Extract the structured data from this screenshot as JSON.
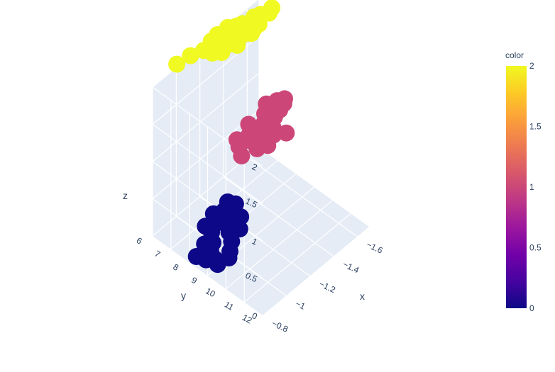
{
  "chart_data": {
    "type": "scatter3d",
    "axes": {
      "x": {
        "title": "x",
        "ticks": [
          "−1.6",
          "−1.4",
          "−1.2",
          "−1",
          "−0.8"
        ]
      },
      "y": {
        "title": "y",
        "ticks": [
          "6",
          "7",
          "8",
          "9",
          "10",
          "11",
          "12"
        ]
      },
      "z": {
        "title": "z",
        "ticks": [
          "0",
          "0.5",
          "1",
          "1.5",
          "2"
        ]
      }
    },
    "colorbar": {
      "title": "color",
      "ticks": [
        "0",
        "0.5",
        "1",
        "1.5",
        "2"
      ],
      "range": [
        0,
        2
      ],
      "colorscale": [
        "#0d0887",
        "#46039f",
        "#7201a8",
        "#9c179e",
        "#bd3786",
        "#d8576b",
        "#ed7953",
        "#fb9f3a",
        "#fdca26",
        "#f0f921"
      ]
    },
    "series": [
      {
        "color_value": 0,
        "marker_color": "#0d0887",
        "points": [
          {
            "x": -1.22,
            "y": 7.2,
            "z": 0
          },
          {
            "x": -1.2,
            "y": 7.5,
            "z": 0
          },
          {
            "x": -1.15,
            "y": 7.8,
            "z": 0
          },
          {
            "x": -1.1,
            "y": 7.4,
            "z": 0
          },
          {
            "x": -1.25,
            "y": 7.9,
            "z": 0
          },
          {
            "x": -1.12,
            "y": 8.1,
            "z": 0
          },
          {
            "x": -1.05,
            "y": 7.6,
            "z": 0
          },
          {
            "x": -1.18,
            "y": 8.3,
            "z": 0
          },
          {
            "x": -1.0,
            "y": 8.0,
            "z": 0
          },
          {
            "x": -1.08,
            "y": 8.5,
            "z": 0
          },
          {
            "x": -0.95,
            "y": 8.2,
            "z": 0
          },
          {
            "x": -1.02,
            "y": 8.8,
            "z": 0
          },
          {
            "x": -0.92,
            "y": 8.6,
            "z": 0
          },
          {
            "x": -0.98,
            "y": 9.0,
            "z": 0
          },
          {
            "x": -0.9,
            "y": 8.9,
            "z": 0
          },
          {
            "x": -1.28,
            "y": 7.0,
            "z": 0
          },
          {
            "x": -1.3,
            "y": 7.3,
            "z": 0
          },
          {
            "x": -1.16,
            "y": 7.0,
            "z": 0
          },
          {
            "x": -1.06,
            "y": 7.2,
            "z": 0
          },
          {
            "x": -0.96,
            "y": 7.8,
            "z": 0
          },
          {
            "x": -0.88,
            "y": 8.4,
            "z": 0
          },
          {
            "x": -0.86,
            "y": 8.0,
            "z": 0
          }
        ]
      },
      {
        "color_value": 1,
        "marker_color": "#cc4778",
        "points": [
          {
            "x": -1.5,
            "y": 7.6,
            "z": 1
          },
          {
            "x": -1.45,
            "y": 7.9,
            "z": 1
          },
          {
            "x": -1.4,
            "y": 8.1,
            "z": 1
          },
          {
            "x": -1.38,
            "y": 7.5,
            "z": 1
          },
          {
            "x": -1.35,
            "y": 8.4,
            "z": 1
          },
          {
            "x": -1.32,
            "y": 7.9,
            "z": 1
          },
          {
            "x": -1.3,
            "y": 8.2,
            "z": 1
          },
          {
            "x": -1.28,
            "y": 8.6,
            "z": 1
          },
          {
            "x": -1.25,
            "y": 7.7,
            "z": 1
          },
          {
            "x": -1.42,
            "y": 8.6,
            "z": 1
          },
          {
            "x": -1.46,
            "y": 8.3,
            "z": 1
          },
          {
            "x": -1.22,
            "y": 8.0,
            "z": 1
          },
          {
            "x": -1.52,
            "y": 8.0,
            "z": 1
          },
          {
            "x": -1.18,
            "y": 8.4,
            "z": 1
          },
          {
            "x": -1.6,
            "y": 7.6,
            "z": 1
          },
          {
            "x": -1.58,
            "y": 7.9,
            "z": 1
          },
          {
            "x": -1.63,
            "y": 7.8,
            "z": 1
          },
          {
            "x": -1.66,
            "y": 7.65,
            "z": 1
          },
          {
            "x": -1.56,
            "y": 7.3,
            "z": 1
          },
          {
            "x": -1.62,
            "y": 7.5,
            "z": 1
          },
          {
            "x": -1.48,
            "y": 8.9,
            "z": 1
          },
          {
            "x": -1.34,
            "y": 8.8,
            "z": 1
          }
        ]
      },
      {
        "color_value": 2,
        "marker_color": "#f0f921",
        "points": [
          {
            "x": -1.42,
            "y": 6.1,
            "z": 2
          },
          {
            "x": -1.36,
            "y": 6.2,
            "z": 2
          },
          {
            "x": -1.34,
            "y": 6.05,
            "z": 2
          },
          {
            "x": -1.3,
            "y": 6.3,
            "z": 2
          },
          {
            "x": -1.4,
            "y": 6.4,
            "z": 2
          },
          {
            "x": -1.28,
            "y": 6.1,
            "z": 2
          },
          {
            "x": -1.38,
            "y": 6.6,
            "z": 2
          },
          {
            "x": -1.25,
            "y": 6.4,
            "z": 2
          },
          {
            "x": -1.32,
            "y": 6.7,
            "z": 2
          },
          {
            "x": -1.2,
            "y": 6.2,
            "z": 2
          },
          {
            "x": -1.46,
            "y": 6.3,
            "z": 2
          },
          {
            "x": -1.26,
            "y": 6.8,
            "z": 2
          },
          {
            "x": -1.44,
            "y": 6.8,
            "z": 2
          },
          {
            "x": -1.5,
            "y": 6.4,
            "z": 2
          },
          {
            "x": -1.48,
            "y": 7.0,
            "z": 2
          },
          {
            "x": -1.52,
            "y": 6.9,
            "z": 2
          },
          {
            "x": -1.58,
            "y": 6.5,
            "z": 2
          },
          {
            "x": -1.56,
            "y": 6.9,
            "z": 2
          },
          {
            "x": -1.62,
            "y": 6.6,
            "z": 2
          },
          {
            "x": -1.66,
            "y": 6.8,
            "z": 2
          },
          {
            "x": -1.7,
            "y": 6.7,
            "z": 2
          },
          {
            "x": -1.12,
            "y": 6.0,
            "z": 2
          },
          {
            "x": -1.02,
            "y": 5.9,
            "z": 2
          },
          {
            "x": -1.22,
            "y": 6.55,
            "z": 2
          },
          {
            "x": -1.36,
            "y": 7.0,
            "z": 2
          }
        ]
      }
    ]
  }
}
